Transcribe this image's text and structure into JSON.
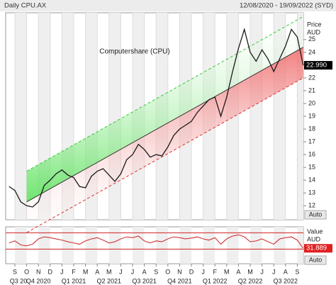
{
  "header": {
    "title": "Daily CPU.AX",
    "range": "12/08/2020 - 19/09/2022 (SYD)"
  },
  "chart_data": {
    "type": "line",
    "annotation": "Computershare (CPU)",
    "y_label_1": "Price",
    "y_label_2": "AUD",
    "auto_label": "Auto",
    "categories": [
      null,
      "S",
      null,
      "O",
      null,
      "N",
      null,
      "D",
      null,
      "J",
      null,
      "F",
      null,
      "M",
      null,
      "A",
      null,
      "M",
      null,
      "J",
      null,
      "J",
      null,
      "A",
      null,
      "S",
      null,
      "O",
      null,
      "N",
      null,
      "D",
      null,
      "J",
      null,
      "F",
      null,
      "M",
      null,
      "A",
      null,
      "M",
      null,
      "J",
      null,
      "J",
      null,
      "A",
      null,
      "S",
      null
    ],
    "quarters": [
      null,
      "Q3 20",
      null,
      null,
      null,
      "Q4 2020",
      null,
      null,
      null,
      null,
      null,
      "Q1 2021",
      null,
      null,
      null,
      null,
      null,
      "Q2 2021",
      null,
      null,
      null,
      null,
      null,
      "Q3 2021",
      null,
      null,
      null,
      null,
      null,
      "Q4 2021",
      null,
      null,
      null,
      null,
      null,
      "Q1 2022",
      null,
      null,
      null,
      null,
      null,
      "Q2 2022",
      null,
      null,
      null,
      null,
      null,
      "Q3 2022",
      null,
      null,
      null
    ],
    "series": [
      {
        "name": "CPU.AX",
        "color": "#1a1a1a",
        "values": [
          13.5,
          13.2,
          12.3,
          12.0,
          11.9,
          12.3,
          13.6,
          14.0,
          14.5,
          14.8,
          14.4,
          14.2,
          13.5,
          13.4,
          14.3,
          14.7,
          14.9,
          14.4,
          13.9,
          14.5,
          15.6,
          16.0,
          16.8,
          16.4,
          15.8,
          16.0,
          15.9,
          16.6,
          17.5,
          18.0,
          18.3,
          18.6,
          19.3,
          19.8,
          20.3,
          20.5,
          19.0,
          20.5,
          22.5,
          24.3,
          25.8,
          24.0,
          23.3,
          24.2,
          23.5,
          22.5,
          23.5,
          24.5,
          25.8,
          25.2,
          22.99
        ]
      }
    ],
    "last_price": {
      "value": 22.99,
      "label": "22.990"
    },
    "channel": {
      "from": 3,
      "to": 50,
      "start": 12.3,
      "end": 24.4,
      "offset": 2.4,
      "upper_color": "#33cc33",
      "lower_color": "#e03030"
    },
    "ylim": [
      10.9,
      27.1
    ],
    "yticks": [
      12,
      13,
      14,
      15,
      16,
      17,
      18,
      19,
      20,
      21,
      22,
      23,
      24,
      25
    ],
    "indicator": {
      "y_label_1": "Value",
      "y_label_2": "AUD",
      "auto_label": "Auto",
      "color": "#d02020",
      "values": [
        45,
        50,
        40,
        38,
        42,
        55,
        60,
        58,
        55,
        52,
        48,
        45,
        42,
        50,
        55,
        58,
        52,
        45,
        48,
        55,
        60,
        58,
        62,
        50,
        45,
        50,
        48,
        55,
        60,
        58,
        55,
        57,
        60,
        55,
        52,
        58,
        42,
        55,
        62,
        65,
        60,
        48,
        50,
        55,
        48,
        42,
        55,
        58,
        60,
        52,
        31.889
      ],
      "levels": [
        30,
        70
      ],
      "ylim": [
        -6,
        84.5
      ]
    }
  }
}
